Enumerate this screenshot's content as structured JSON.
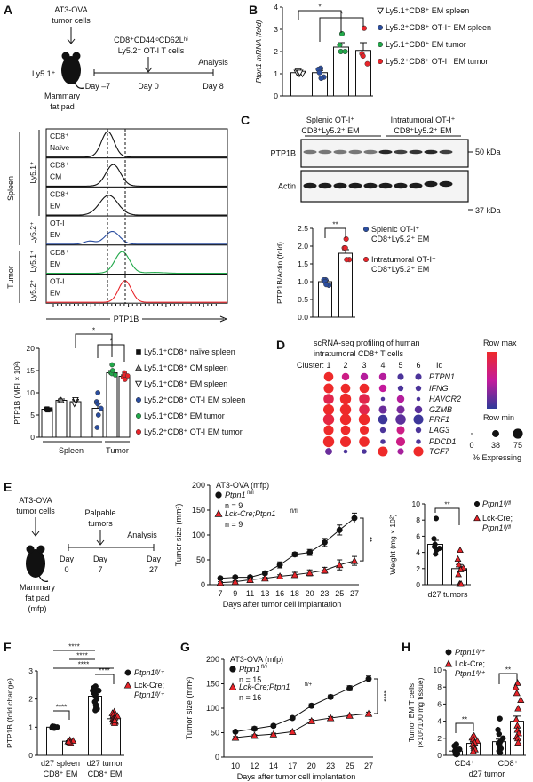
{
  "panel_letters": {
    "A": "A",
    "B": "B",
    "C": "C",
    "D": "D",
    "E": "E",
    "F": "F",
    "G": "G",
    "H": "H"
  },
  "colors": {
    "blue": "#2b4ea0",
    "green": "#22a84a",
    "red": "#e8242a",
    "black": "#111111",
    "gray": "#888888",
    "row_max": "#ee2a2a",
    "row_mid": "#c41a9c",
    "row_min": "#2e3a9a"
  },
  "schematic_A": {
    "cells": "AT3-OVA",
    "cells2": "tumor cells",
    "host": "Ly5.1⁺",
    "site1": "Mammary",
    "site2": "fat pad",
    "transfer1": "CD8⁺CD44ˡᵒCD62Lʰⁱ",
    "transfer2": "Ly5.2⁺ OT-I T cells",
    "analysis": "Analysis",
    "days": [
      "Day –7",
      "Day 0",
      "Day 8"
    ],
    "icon": "mouse-icon"
  },
  "schematic_E": {
    "cells": "AT3-OVA",
    "cells2": "tumor cells",
    "site1": "Mammary",
    "site2": "fat pad",
    "site3": "(mfp)",
    "palpable1": "Palpable",
    "palpable2": "tumors",
    "analysis": "Analysis",
    "days": [
      [
        "Day",
        "0"
      ],
      [
        "Day",
        "7"
      ],
      [
        "Day",
        "27"
      ]
    ],
    "icon": "mouse-icon"
  },
  "chart_data": [
    {
      "panel": "A",
      "type": "histogram",
      "xlabel": "PTP1B",
      "row_labels": [
        [
          "CD8⁺",
          "Naïve"
        ],
        [
          "CD8⁺",
          "CM"
        ],
        [
          "CD8⁺",
          "EM"
        ],
        [
          "OT-I",
          "EM"
        ],
        [
          "CD8⁺",
          "EM"
        ],
        [
          "OT-I",
          "EM"
        ]
      ],
      "row_colors": [
        "#111111",
        "#111111",
        "#111111",
        "#2b4ea0",
        "#22a84a",
        "#e8242a"
      ],
      "tissue_labels": [
        "Spleen",
        "Tumor"
      ],
      "strain_labels": [
        "Ly5.1⁺",
        "Ly5.2⁺",
        "Ly5.1⁺",
        "Ly5.2⁺"
      ]
    },
    {
      "panel": "A",
      "type": "bar",
      "ylabel": "PTP1B (MFI × 10²)",
      "ylim": [
        0,
        20
      ],
      "yticks": [
        0,
        5,
        10,
        15,
        20
      ],
      "groups": [
        "Spleen",
        "Tumor"
      ],
      "series": [
        {
          "name": "Ly5.1⁺CD8⁺ naïve spleen",
          "value": 6.3,
          "sem": 0.2,
          "marker": "square",
          "color": "#111111",
          "points": [
            6.2,
            6.3,
            6.4,
            6.2,
            6.1
          ]
        },
        {
          "name": "Ly5.1⁺CD8⁺ CM spleen",
          "value": 8.3,
          "sem": 0.3,
          "marker": "triangle-up",
          "color": "#888888",
          "points": [
            8.2,
            8.5,
            8.3
          ]
        },
        {
          "name": "Ly5.1⁺CD8⁺ EM spleen",
          "value": 8.0,
          "sem": 0.4,
          "marker": "triangle-down",
          "color": "#ffffff",
          "points": [
            8.0,
            7.5,
            8.4
          ]
        },
        {
          "name": "Ly5.2⁺CD8⁺ OT-I EM spleen",
          "value": 6.5,
          "sem": 1.1,
          "marker": "circle",
          "color": "#2b4ea0",
          "points": [
            10,
            8,
            7.5,
            6.5,
            5,
            2.2
          ]
        },
        {
          "name": "Ly5.1⁺CD8⁺ EM tumor",
          "value": 14.5,
          "sem": 0.5,
          "marker": "circle",
          "color": "#22a84a",
          "points": [
            16.3,
            14.5,
            14.3,
            14,
            15
          ]
        },
        {
          "name": "Ly5.2⁺CD8⁺ OT-I EM tumor",
          "value": 13.7,
          "sem": 0.3,
          "marker": "circle",
          "color": "#e8242a",
          "points": [
            14.5,
            13.5,
            14,
            13.8,
            13
          ]
        }
      ],
      "significance": [
        {
          "from": 2,
          "to": 4,
          "label": "*"
        },
        {
          "from": 3,
          "to": 5,
          "label": "*"
        }
      ]
    },
    {
      "panel": "B",
      "type": "bar",
      "ylabel": "Ptpn1 mRNA (fold)",
      "ylim": [
        0,
        4
      ],
      "yticks": [
        0,
        1,
        2,
        3,
        4
      ],
      "series": [
        {
          "name": "Ly5.1⁺CD8⁺ EM spleen",
          "value": 1.05,
          "sem": 0.05,
          "marker": "triangle-down",
          "color": "#ffffff",
          "points": [
            1.0,
            1.05,
            1.1,
            1.0,
            1.05
          ]
        },
        {
          "name": "Ly5.2⁺CD8⁺ OT-I⁺ EM spleen",
          "value": 1.05,
          "sem": 0.1,
          "marker": "circle",
          "color": "#2b4ea0",
          "points": [
            1.25,
            1.2,
            1.05,
            0.85,
            0.8
          ]
        },
        {
          "name": "Ly5.1⁺CD8⁺ EM tumor",
          "value": 2.2,
          "sem": 0.2,
          "marker": "circle",
          "color": "#22a84a",
          "points": [
            2.8,
            2.3,
            2.0,
            2.0
          ]
        },
        {
          "name": "Ly5.2⁺CD8⁺ OT-I⁺ EM tumor",
          "value": 2.05,
          "sem": 0.35,
          "marker": "circle",
          "color": "#e8242a",
          "points": [
            3.05,
            1.9,
            1.8,
            1.45
          ]
        }
      ],
      "significance": [
        {
          "from": 0,
          "to": 2,
          "label": "*"
        },
        {
          "from": 1,
          "to": 3,
          "label": "*"
        }
      ]
    },
    {
      "panel": "C",
      "type": "western_blot",
      "group_labels": [
        [
          "Splenic OT-I⁺",
          "CD8⁺Ly5.2⁺ EM"
        ],
        [
          "Intratumoral OT-I⁺",
          "CD8⁺Ly5.2⁺ EM"
        ]
      ],
      "blots": [
        "PTP1B",
        "Actin"
      ],
      "markers": [
        "50 kDa",
        "37 kDa"
      ],
      "lanes_per_group": 5
    },
    {
      "panel": "C",
      "type": "bar",
      "ylabel": "PTP1B/Actin (fold)",
      "ylim": [
        0,
        2.5
      ],
      "yticks": [
        "0.0",
        "0.5",
        "1.0",
        "1.5",
        "2.0",
        "2.5"
      ],
      "series": [
        {
          "name": "Splenic OT-I⁺ CD8⁺Ly5.2⁺ EM",
          "legend": [
            "Splenic OT-I⁺",
            "CD8⁺Ly5.2⁺ EM"
          ],
          "value": 1.0,
          "sem": 0.04,
          "marker": "circle",
          "color": "#2b4ea0",
          "points": [
            1.05,
            1.05,
            1.0,
            0.9,
            0.92
          ]
        },
        {
          "name": "Intratumoral OT-I⁺ CD8⁺Ly5.2⁺ EM",
          "legend": [
            "Intratumoral OT-I⁺",
            "CD8⁺Ly5.2⁺ EM"
          ],
          "value": 1.8,
          "sem": 0.1,
          "marker": "circle",
          "color": "#e8242a",
          "points": [
            2.2,
            1.95,
            1.95,
            1.62,
            1.62
          ]
        }
      ],
      "significance": [
        {
          "from": 0,
          "to": 1,
          "label": "**"
        }
      ]
    },
    {
      "panel": "D",
      "type": "dot_heatmap",
      "title": [
        "scRNA-seq profiling of human",
        "intratumoral CD8⁺ T cells"
      ],
      "cluster_label": "Cluster:",
      "clusters": [
        "1",
        "2",
        "3",
        "4",
        "5",
        "6"
      ],
      "id_label": "Id",
      "genes": [
        "PTPN1",
        "IFNG",
        "HAVCR2",
        "GZMB",
        "PRF1",
        "LAG3",
        "PDCD1",
        "TCF7"
      ],
      "pct_expressing": [
        [
          55,
          35,
          35,
          35,
          25,
          25
        ],
        [
          60,
          55,
          55,
          35,
          20,
          20
        ],
        [
          65,
          75,
          65,
          10,
          35,
          10
        ],
        [
          70,
          75,
          65,
          40,
          40,
          35
        ],
        [
          75,
          75,
          75,
          55,
          65,
          60
        ],
        [
          60,
          55,
          50,
          20,
          40,
          20
        ],
        [
          75,
          70,
          65,
          15,
          50,
          15
        ],
        [
          30,
          10,
          15,
          60,
          25,
          60
        ]
      ],
      "scaled_expression": [
        [
          1,
          0.6,
          0.45,
          0.45,
          0.1,
          0.1
        ],
        [
          1,
          1,
          1,
          0.5,
          0.1,
          0.1
        ],
        [
          0.85,
          1,
          0.85,
          0.1,
          0.45,
          0.1
        ],
        [
          1,
          1,
          0.85,
          0.2,
          0.25,
          0.15
        ],
        [
          0.9,
          1,
          1,
          0.05,
          0.15,
          0.05
        ],
        [
          1,
          1,
          1,
          0.1,
          0.6,
          0.1
        ],
        [
          1,
          1,
          1,
          0.1,
          0.6,
          0.1
        ],
        [
          0.2,
          0.1,
          0.1,
          1,
          0.4,
          1
        ]
      ],
      "colorbar": {
        "max_label": "Row max",
        "min_label": "Row min"
      },
      "size_legend": {
        "values": [
          0,
          38,
          75
        ],
        "labels": [
          "0",
          "38",
          "75"
        ],
        "title": "% Expressing"
      }
    },
    {
      "panel": "E",
      "type": "line",
      "title": "AT3-OVA (mfp)",
      "ylabel": "Tumor size (mm²)",
      "xlabel": "Days after tumor cell implantation",
      "ylim": [
        0,
        200
      ],
      "yticks": [
        0,
        50,
        100,
        150,
        200
      ],
      "x": [
        7,
        9,
        11,
        13,
        16,
        18,
        20,
        23,
        25,
        27
      ],
      "series": [
        {
          "name": "Ptpn1",
          "sup": "fl/fl",
          "n": "n = 9",
          "marker": "circle",
          "color": "#111111",
          "values": [
            13,
            15,
            15,
            23,
            40,
            61,
            65,
            85,
            110,
            134
          ],
          "sem": [
            3,
            3,
            3,
            3,
            6,
            4,
            6,
            8,
            10,
            10
          ]
        },
        {
          "name": "Lck-Cre;Ptpn1",
          "sup": "fl/fl",
          "n": "n = 9",
          "marker": "triangle-up",
          "color": "#e8242a",
          "values": [
            4,
            6,
            10,
            13,
            17,
            20,
            24,
            29,
            40,
            48
          ],
          "sem": [
            2,
            2,
            2,
            2,
            3,
            5,
            6,
            6,
            10,
            9
          ]
        }
      ],
      "significance": "**"
    },
    {
      "panel": "E",
      "type": "bar",
      "ylabel": "Weight (mg × 10²)",
      "xlabel": "d27 tumors",
      "ylim": [
        0,
        10
      ],
      "yticks": [
        0,
        2,
        4,
        6,
        8,
        10
      ],
      "series": [
        {
          "name": "Ptpn1",
          "legend": [
            "Ptpn1ᶠˡ/ᶠˡ"
          ],
          "value": 5.0,
          "sem": 0.5,
          "marker": "circle",
          "color": "#111111",
          "points": [
            8.2,
            5.7,
            5.0,
            4.5,
            4.3,
            4.7,
            3.8
          ]
        },
        {
          "name": "Lck-Cre;Ptpn1",
          "legend": [
            "Lck-Cre;",
            "Ptpn1ᶠˡ/ᶠˡ"
          ],
          "value": 2.0,
          "sem": 0.5,
          "marker": "triangle-up",
          "color": "#e8242a",
          "points": [
            4.3,
            3.2,
            2.5,
            2.1,
            1.9,
            1.3,
            0.1,
            0.1,
            0.1
          ]
        }
      ],
      "significance": [
        {
          "from": 0,
          "to": 1,
          "label": "**"
        }
      ]
    },
    {
      "panel": "F",
      "type": "bar",
      "ylabel": "PTP1B (fold change)",
      "ylim": [
        0,
        3
      ],
      "yticks": [
        0,
        1,
        2,
        3
      ],
      "categories": [
        [
          "d27 spleen",
          "CD8⁺ EM"
        ],
        [
          "d27 tumor",
          "CD8⁺ EM"
        ]
      ],
      "series": [
        {
          "name": "Ptpn1 fl/+ spleen",
          "value": 1.0,
          "sem": 0.01,
          "marker": "circle",
          "color": "#111111",
          "points": [
            1.0,
            0.98,
            1.02,
            1.0,
            0.97,
            1.03,
            0.99,
            1.01,
            1.0,
            0.98,
            1.02,
            1.0
          ]
        },
        {
          "name": "Lck-Cre;Ptpn1 fl/+ spleen",
          "value": 0.5,
          "sem": 0.02,
          "marker": "triangle-up",
          "color": "#e8242a",
          "points": [
            0.55,
            0.5,
            0.48,
            0.52,
            0.45,
            0.5
          ]
        },
        {
          "name": "Ptpn1 fl/+ tumor",
          "value": 2.1,
          "sem": 0.06,
          "marker": "circle",
          "color": "#111111",
          "points": [
            2.45,
            2.4,
            2.35,
            2.3,
            2.25,
            2.2,
            2.15,
            2.1,
            2.0,
            1.9,
            1.8,
            1.7,
            1.65,
            1.6,
            2.3
          ]
        },
        {
          "name": "Lck-Cre;Ptpn1 fl/+ tumor",
          "value": 1.3,
          "sem": 0.03,
          "marker": "triangle-up",
          "color": "#e8242a",
          "points": [
            1.55,
            1.5,
            1.45,
            1.4,
            1.35,
            1.3,
            1.3,
            1.25,
            1.2,
            1.2,
            1.15,
            1.25
          ]
        }
      ],
      "legend": [
        {
          "label": "Ptpn1ᶠˡ/⁺",
          "marker": "circle",
          "color": "#111111"
        },
        {
          "label": [
            "Lck-Cre;",
            "Ptpn1ᶠˡ/⁺"
          ],
          "marker": "triangle-up",
          "color": "#e8242a"
        }
      ],
      "significance": [
        {
          "from": 0,
          "to": 2,
          "label": "****"
        },
        {
          "from": 1,
          "to": 2,
          "label": "****"
        },
        {
          "from": 0,
          "to": 3,
          "label": "****"
        },
        {
          "from": 2,
          "to": 3,
          "label": "****"
        },
        {
          "from": 0,
          "to": 1,
          "label": "****"
        }
      ]
    },
    {
      "panel": "G",
      "type": "line",
      "title": "AT3-OVA (mfp)",
      "ylabel": "Tumor size (mm²)",
      "xlabel": "Days after tumor cell implantation",
      "ylim": [
        0,
        200
      ],
      "yticks": [
        0,
        50,
        100,
        150,
        200
      ],
      "x": [
        10,
        12,
        14,
        17,
        20,
        23,
        25,
        27
      ],
      "series": [
        {
          "name": "Ptpn1",
          "sup": "fl/+",
          "n": "n = 15",
          "marker": "circle",
          "color": "#111111",
          "values": [
            52,
            58,
            64,
            80,
            105,
            123,
            141,
            160
          ],
          "sem": [
            3,
            4,
            3,
            3,
            4,
            4,
            5,
            6
          ]
        },
        {
          "name": "Lck-Cre;Ptpn1",
          "sup": "fl/+",
          "n": "n = 16",
          "marker": "triangle-up",
          "color": "#e8242a",
          "values": [
            40,
            44,
            47,
            52,
            74,
            80,
            85,
            89
          ],
          "sem": [
            2,
            2,
            2,
            2,
            3,
            3,
            3,
            3
          ]
        }
      ],
      "significance": "****"
    },
    {
      "panel": "H",
      "type": "bar",
      "ylabel": [
        "Tumor EM T cells",
        "(×10⁵/100 mg tissue)"
      ],
      "xlabel": "d27 tumor",
      "ylim": [
        0,
        10
      ],
      "yticks": [
        0,
        2,
        4,
        6,
        8,
        10
      ],
      "categories": [
        "CD4⁺",
        "CD8⁺"
      ],
      "series": [
        {
          "name": "Ptpn1 fl/+ CD4",
          "value": 0.5,
          "sem": 0.1,
          "marker": "circle",
          "color": "#111111",
          "points": [
            1.3,
            1.1,
            0.9,
            0.7,
            0.6,
            0.5,
            0.4,
            0.3,
            0.2,
            0.15,
            0.1,
            0.1
          ]
        },
        {
          "name": "Lck-Cre;Ptpn1 fl/+ CD4",
          "value": 1.4,
          "sem": 0.15,
          "marker": "triangle-up",
          "color": "#e8242a",
          "points": [
            2.3,
            2.1,
            1.9,
            1.7,
            1.5,
            1.3,
            1.1,
            0.9,
            0.7,
            0.5
          ]
        },
        {
          "name": "Ptpn1 fl/+ CD8",
          "value": 1.6,
          "sem": 0.3,
          "marker": "circle",
          "color": "#111111",
          "points": [
            4.3,
            3.0,
            2.5,
            2.0,
            1.6,
            1.4,
            1.2,
            1.0,
            0.8,
            0.5,
            0.3
          ]
        },
        {
          "name": "Lck-Cre;Ptpn1 fl/+ CD8",
          "value": 4.0,
          "sem": 0.6,
          "marker": "triangle-up",
          "color": "#e8242a",
          "points": [
            8.5,
            8.0,
            7.3,
            6.5,
            5.5,
            4.2,
            3.5,
            3.0,
            2.6,
            2.2,
            2.0,
            1.5
          ]
        }
      ],
      "legend": [
        {
          "label": "Ptpn1ᶠˡ/⁺",
          "marker": "circle",
          "color": "#111111"
        },
        {
          "label": [
            "Lck-Cre;",
            "Ptpn1ᶠˡ/⁺"
          ],
          "marker": "triangle-up",
          "color": "#e8242a"
        }
      ],
      "significance": [
        {
          "from": 0,
          "to": 1,
          "label": "**"
        },
        {
          "from": 2,
          "to": 3,
          "label": "**"
        }
      ]
    }
  ]
}
